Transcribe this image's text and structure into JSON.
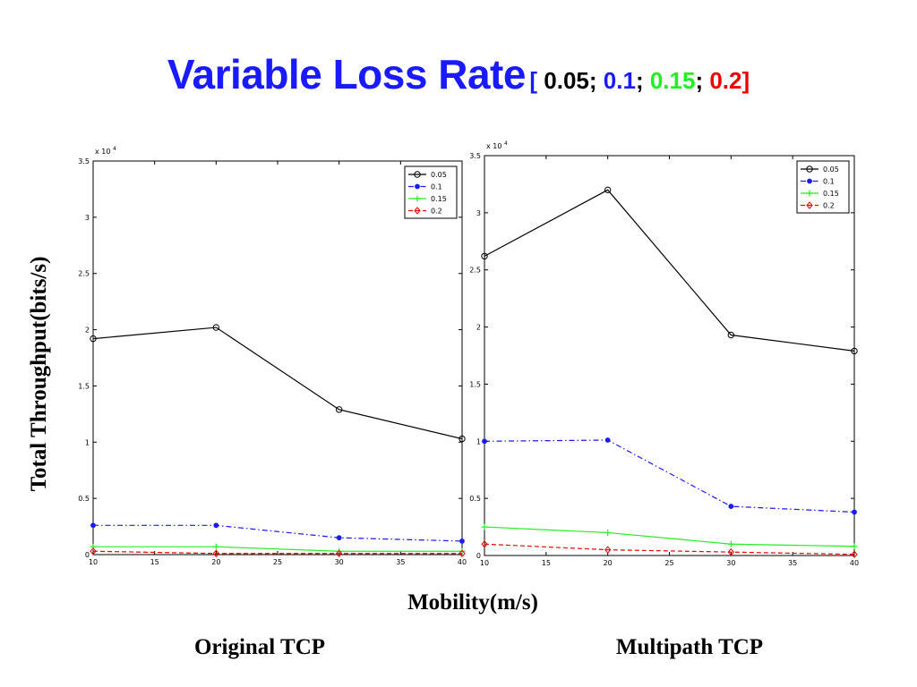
{
  "title": {
    "main": "Variable Loss Rate",
    "open": "[ ",
    "v1": "0.05",
    "sep1": "; ",
    "v2": "0.1",
    "sep2": "; ",
    "v3": "0.15",
    "sep3": "; ",
    "v4": "0.2",
    "close": "]"
  },
  "colors": {
    "0.05": "#000000",
    "0.1": "#1a1aff",
    "0.15": "#22ee22",
    "0.2": "#ee0000"
  },
  "ylabel": "Total Throughput(bits/s)",
  "xlabel": "Mobility(m/s)",
  "captions": {
    "left": "Original TCP",
    "right": "Multipath TCP"
  },
  "chart_data": [
    {
      "type": "line",
      "exponent_label": "x 10",
      "exponent_power": "4",
      "x": [
        10,
        20,
        30,
        40
      ],
      "xlim": [
        10,
        40
      ],
      "xticks": [
        "10",
        "15",
        "20",
        "25",
        "30",
        "35",
        "40"
      ],
      "ylim": [
        0,
        3.5
      ],
      "yticks": [
        "0",
        "0.5",
        "1",
        "1.5",
        "2",
        "2.5",
        "3",
        "3.5"
      ],
      "legend_position": "top-right",
      "series": [
        {
          "name": "0.05",
          "values": [
            1.92,
            2.02,
            1.29,
            1.03
          ],
          "color": "#000000",
          "marker": "circle",
          "dash": "solid"
        },
        {
          "name": "0.1",
          "values": [
            0.26,
            0.26,
            0.15,
            0.12
          ],
          "color": "#1a1aff",
          "marker": "dot",
          "dash": "dashdot"
        },
        {
          "name": "0.15",
          "values": [
            0.07,
            0.07,
            0.03,
            0.03
          ],
          "color": "#22ee22",
          "marker": "plus",
          "dash": "solid"
        },
        {
          "name": "0.2",
          "values": [
            0.03,
            0.01,
            0.01,
            0.01
          ],
          "color": "#ee0000",
          "marker": "diamond",
          "dash": "dashed"
        }
      ]
    },
    {
      "type": "line",
      "exponent_label": "x 10",
      "exponent_power": "4",
      "x": [
        10,
        20,
        30,
        40
      ],
      "xlim": [
        10,
        40
      ],
      "xticks": [
        "10",
        "15",
        "20",
        "25",
        "30",
        "35",
        "40"
      ],
      "ylim": [
        0,
        3.5
      ],
      "yticks": [
        "0",
        "0.5",
        "1",
        "1.5",
        "2",
        "2.5",
        "3",
        "3.5"
      ],
      "legend_position": "top-right",
      "series": [
        {
          "name": "0.05",
          "values": [
            2.62,
            3.2,
            1.93,
            1.79
          ],
          "color": "#000000",
          "marker": "circle",
          "dash": "solid"
        },
        {
          "name": "0.1",
          "values": [
            1.0,
            1.01,
            0.43,
            0.38
          ],
          "color": "#1a1aff",
          "marker": "dot",
          "dash": "dashdot"
        },
        {
          "name": "0.15",
          "values": [
            0.25,
            0.2,
            0.1,
            0.08
          ],
          "color": "#22ee22",
          "marker": "plus",
          "dash": "solid"
        },
        {
          "name": "0.2",
          "values": [
            0.1,
            0.05,
            0.03,
            0.01
          ],
          "color": "#ee0000",
          "marker": "diamond",
          "dash": "dashed"
        }
      ]
    }
  ]
}
